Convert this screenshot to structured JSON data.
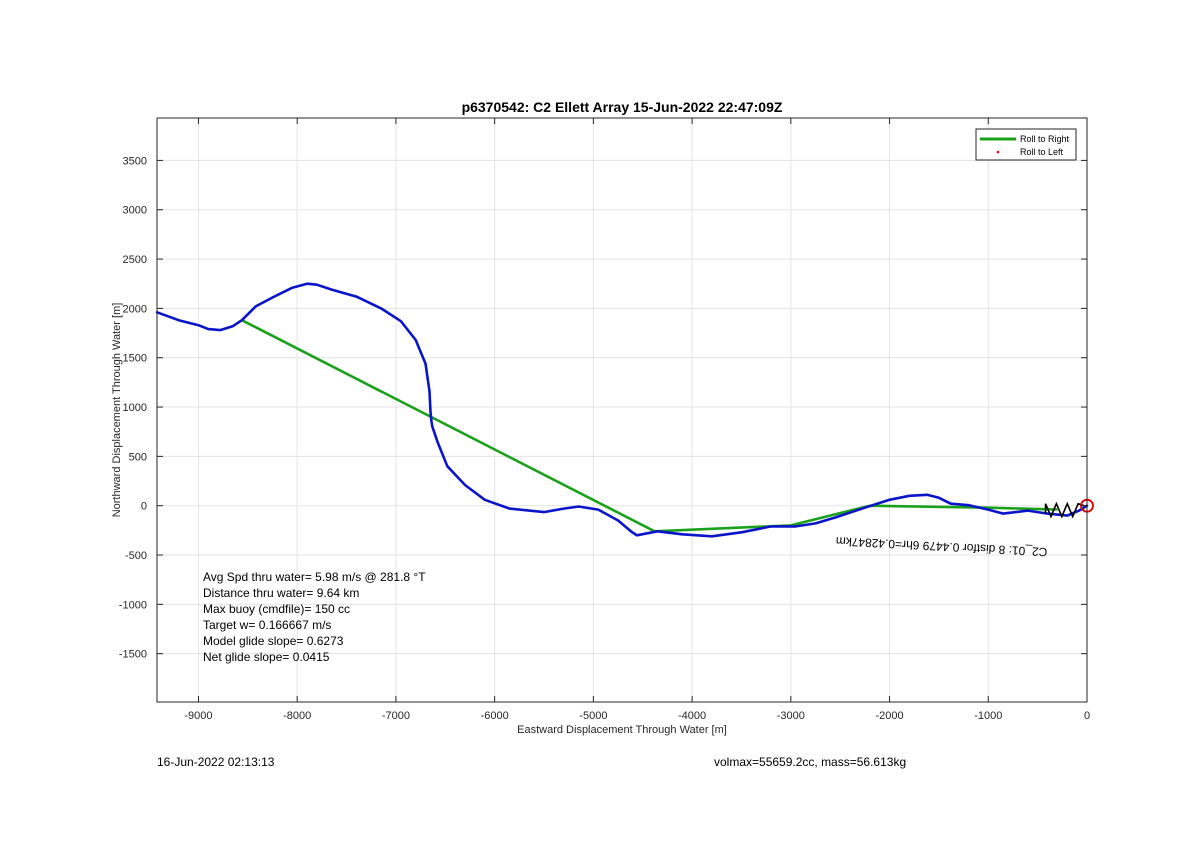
{
  "chart_data": {
    "type": "line",
    "title": "p6370542: C2 Ellett Array 15-Jun-2022 22:47:09Z",
    "xlabel": "Eastward Displacement Through Water [m]",
    "ylabel": "Northward Displacement Through Water [m]",
    "xlim": [
      -9420,
      0
    ],
    "ylim": [
      -1990,
      3930
    ],
    "xticks": [
      -9000,
      -8000,
      -7000,
      -6000,
      -5000,
      -4000,
      -3000,
      -2000,
      -1000,
      0
    ],
    "yticks": [
      -1500,
      -1000,
      -500,
      0,
      500,
      1000,
      1500,
      2000,
      2500,
      3000,
      3500
    ],
    "grid": true,
    "legend_position": "top-right",
    "series": [
      {
        "name": "Roll to Right",
        "color": "#1aa11a",
        "x": [
          -8560,
          -4380,
          -3000,
          -2200,
          -1000,
          -300
        ],
        "y": [
          1880,
          -260,
          -200,
          0,
          -20,
          -40
        ]
      },
      {
        "name": "Roll to Left",
        "color": "#e00000",
        "x": [],
        "y": []
      },
      {
        "name": "",
        "color": "#0a14c8",
        "x": [
          -9420,
          -9200,
          -9000,
          -8900,
          -8780,
          -8650,
          -8560,
          -8420,
          -8250,
          -8050,
          -7900,
          -7800,
          -7650,
          -7400,
          -7150,
          -6950,
          -6800,
          -6700,
          -6660,
          -6650,
          -6640,
          -6630,
          -6580,
          -6480,
          -6300,
          -6100,
          -5850,
          -5500,
          -5300,
          -5150,
          -4950,
          -4750,
          -4620,
          -4560,
          -4350,
          -4100,
          -3800,
          -3500,
          -3200,
          -2950,
          -2750,
          -2550,
          -2250,
          -2000,
          -1800,
          -1620,
          -1500,
          -1380,
          -1200,
          -1000,
          -850,
          -600,
          -400,
          -200,
          -80,
          0
        ],
        "y": [
          1960,
          1880,
          1830,
          1790,
          1780,
          1820,
          1880,
          2020,
          2110,
          2210,
          2250,
          2240,
          2190,
          2120,
          2000,
          1870,
          1680,
          1440,
          1160,
          950,
          850,
          800,
          650,
          400,
          210,
          60,
          -30,
          -65,
          -30,
          -8,
          -40,
          -150,
          -260,
          -300,
          -260,
          -290,
          -310,
          -270,
          -210,
          -210,
          -180,
          -120,
          -20,
          60,
          100,
          110,
          80,
          20,
          5,
          -40,
          -80,
          -50,
          -80,
          -100,
          -50,
          0
        ]
      }
    ],
    "end_marker": {
      "x": 0,
      "y": 0,
      "color": "#e00000"
    },
    "waypoint_label": {
      "text": "C2_01: 8 distfor 0.4479 6hr=0.42847km",
      "x": -400,
      "y": -430
    },
    "annotations": [
      "Avg Spd thru water=  5.98 m/s @ 281.8 °T",
      "Distance thru water=  9.64 km",
      "Max buoy (cmdfile)= 150 cc",
      "Target w= 0.166667 m/s",
      "Model glide slope= 0.6273",
      "Net glide slope= 0.0415"
    ]
  },
  "footer": {
    "left": "16-Jun-2022 02:13:13",
    "right": "volmax=55659.2cc, mass=56.613kg"
  }
}
